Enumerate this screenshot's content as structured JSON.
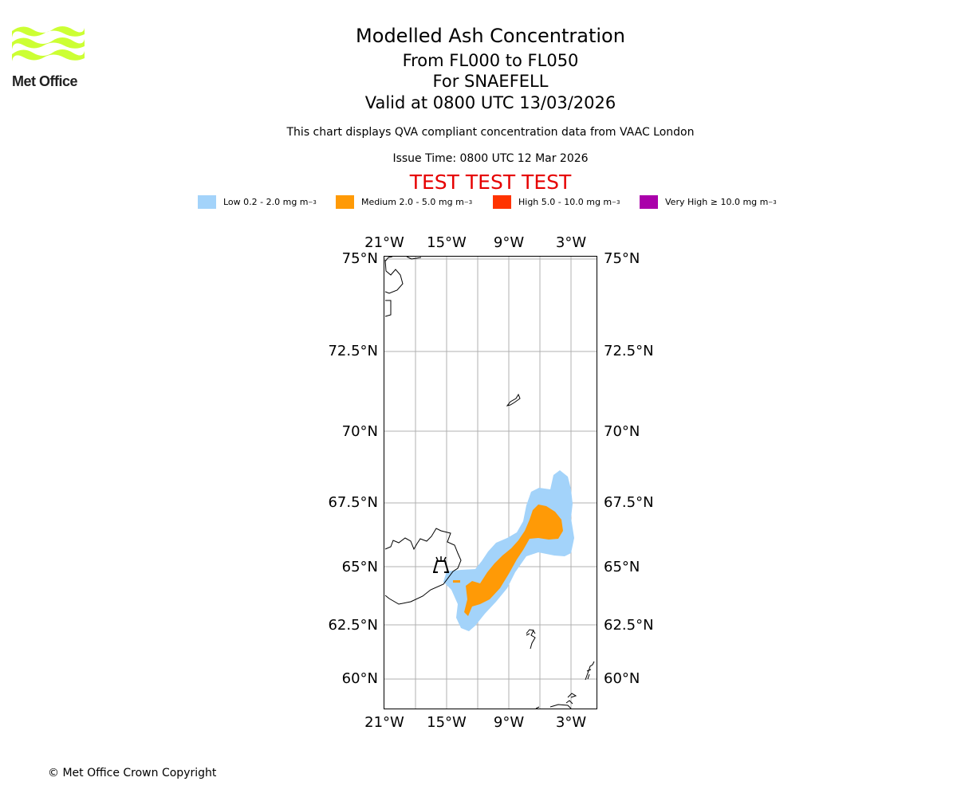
{
  "logo": {
    "text": "Met Office",
    "color": "#ccff33"
  },
  "header": {
    "title": "Modelled Ash Concentration",
    "levels": "From FL000 to FL050",
    "volcano": "For SNAEFELL",
    "valid": "Valid at 0800 UTC 13/03/2026",
    "description": "This chart displays QVA compliant concentration data from VAAC London",
    "issue_time": "Issue Time: 0800 UTC 12 Mar 2026",
    "test_banner": "TEST TEST TEST"
  },
  "legend": [
    {
      "label": "Low 0.2 - 2.0 mg m",
      "unit_sup": "−3",
      "color": "#a3d3fa"
    },
    {
      "label": "Medium 2.0 - 5.0 mg m",
      "unit_sup": "−3",
      "color": "#ff9a06"
    },
    {
      "label": "High 5.0 - 10.0 mg m",
      "unit_sup": "−3",
      "color": "#ff3300"
    },
    {
      "label": "Very High  ≥  10.0 mg m",
      "unit_sup": "−3",
      "color": "#aa00aa"
    }
  ],
  "map": {
    "lon_labels": [
      "21°W",
      "15°W",
      "9°W",
      "3°W"
    ],
    "lat_labels": [
      "75°N",
      "72.5°N",
      "70°N",
      "67.5°N",
      "65°N",
      "62.5°N",
      "60°N"
    ],
    "volcano_icon": "volcano-icon"
  },
  "footer": {
    "copyright": "© Met Office Crown Copyright"
  }
}
